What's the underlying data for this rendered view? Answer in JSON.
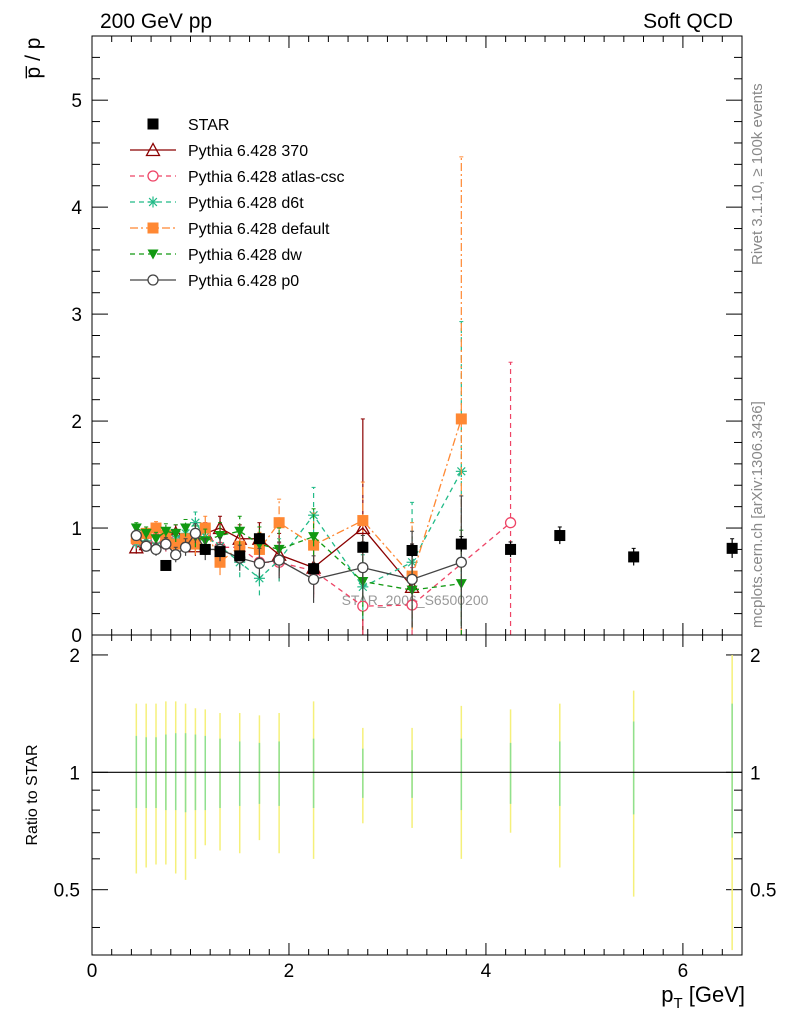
{
  "header": {
    "left": "200 GeV pp",
    "right": "Soft QCD",
    "side_top": "Rivet 3.1.10, ≥ 100k events",
    "side_bottom": "mcplots.cern.ch [arXiv:1306.3436]",
    "watermark": "STAR_2006_S6500200"
  },
  "chart_data": [
    {
      "type": "scatter",
      "panel": "main",
      "ylabel": "p̅ / p",
      "xlim": [
        0,
        6.6
      ],
      "ylim": [
        0,
        5.6
      ],
      "y_ticks": [
        0,
        1,
        2,
        3,
        4,
        5
      ],
      "series": [
        {
          "name": "STAR",
          "color": "#000000",
          "marker": "square",
          "line": "none",
          "x": [
            0.75,
            1.15,
            1.3,
            1.5,
            1.7,
            2.25,
            2.75,
            3.25,
            3.75,
            4.25,
            4.75,
            5.5,
            6.5
          ],
          "y": [
            0.65,
            0.8,
            0.78,
            0.74,
            0.9,
            0.62,
            0.82,
            0.79,
            0.85,
            0.8,
            0.93,
            0.73,
            0.81
          ],
          "err": [
            0.03,
            0.04,
            0.04,
            0.04,
            0.05,
            0.05,
            0.05,
            0.06,
            0.07,
            0.07,
            0.08,
            0.08,
            0.09
          ]
        },
        {
          "name": "Pythia 6.428 370",
          "color": "#8b0000",
          "marker": "triangle-open",
          "line": "solid",
          "x": [
            0.45,
            0.55,
            0.65,
            0.75,
            0.85,
            0.95,
            1.05,
            1.15,
            1.3,
            1.5,
            1.7,
            1.9,
            2.25,
            2.75,
            3.25
          ],
          "y": [
            0.82,
            0.85,
            0.87,
            0.92,
            0.95,
            0.87,
            0.83,
            0.95,
            1.0,
            0.9,
            0.9,
            0.75,
            0.63,
            1.0,
            0.45
          ],
          "err": [
            0.06,
            0.06,
            0.07,
            0.07,
            0.08,
            0.08,
            0.09,
            0.1,
            0.11,
            0.13,
            0.15,
            0.2,
            0.25,
            1.02,
            0.4
          ]
        },
        {
          "name": "Pythia 6.428 atlas-csc",
          "color": "#ee4466",
          "marker": "circle-open",
          "line": "dashed",
          "x": [
            0.45,
            0.55,
            0.65,
            0.75,
            0.85,
            0.95,
            1.05,
            1.15,
            1.3,
            1.5,
            1.7,
            1.9,
            2.25,
            2.75,
            3.25,
            4.25
          ],
          "y": [
            0.88,
            0.84,
            0.9,
            0.85,
            0.88,
            0.9,
            0.93,
            0.95,
            0.82,
            0.82,
            0.68,
            0.68,
            0.6,
            0.27,
            0.28,
            1.05
          ],
          "err": [
            0.05,
            0.06,
            0.06,
            0.07,
            0.07,
            0.08,
            0.09,
            0.1,
            0.11,
            0.12,
            0.15,
            0.18,
            0.25,
            0.35,
            0.35,
            1.5
          ]
        },
        {
          "name": "Pythia 6.428 d6t",
          "color": "#22bb88",
          "marker": "asterisk",
          "line": "dashed",
          "x": [
            0.45,
            0.55,
            0.65,
            0.75,
            0.85,
            0.95,
            1.05,
            1.15,
            1.3,
            1.5,
            1.7,
            1.9,
            2.25,
            2.75,
            3.25,
            3.75
          ],
          "y": [
            0.86,
            0.88,
            0.83,
            0.88,
            0.9,
            0.95,
            1.05,
            0.92,
            0.83,
            0.68,
            0.53,
            0.7,
            1.12,
            0.45,
            0.68,
            1.53
          ],
          "err": [
            0.05,
            0.06,
            0.06,
            0.07,
            0.08,
            0.08,
            0.1,
            0.11,
            0.12,
            0.14,
            0.16,
            0.2,
            0.26,
            0.3,
            0.56,
            1.4
          ]
        },
        {
          "name": "Pythia 6.428 default",
          "color": "#ff8833",
          "marker": "square",
          "line": "dashdot",
          "x": [
            0.45,
            0.55,
            0.65,
            0.75,
            0.85,
            0.95,
            1.05,
            1.15,
            1.3,
            1.5,
            1.7,
            1.9,
            2.25,
            2.75,
            3.25,
            3.75
          ],
          "y": [
            0.9,
            0.95,
            1.0,
            0.93,
            0.85,
            0.9,
            0.85,
            1.0,
            0.68,
            0.83,
            0.8,
            1.05,
            0.84,
            1.07,
            0.55,
            2.02
          ],
          "err": [
            0.05,
            0.06,
            0.06,
            0.07,
            0.08,
            0.08,
            0.1,
            0.11,
            0.12,
            0.14,
            0.16,
            0.22,
            0.3,
            0.36,
            0.5,
            2.45
          ]
        },
        {
          "name": "Pythia 6.428 dw",
          "color": "#119911",
          "marker": "triangle-down",
          "line": "dashed",
          "x": [
            0.45,
            0.55,
            0.65,
            0.75,
            0.85,
            0.95,
            1.05,
            1.15,
            1.3,
            1.5,
            1.7,
            1.9,
            2.25,
            2.75,
            3.25,
            3.75
          ],
          "y": [
            1.0,
            0.95,
            0.9,
            0.97,
            0.95,
            1.0,
            0.92,
            0.88,
            0.93,
            0.97,
            0.85,
            0.8,
            0.92,
            0.5,
            0.42,
            0.48
          ],
          "err": [
            0.05,
            0.06,
            0.06,
            0.07,
            0.08,
            0.08,
            0.1,
            0.11,
            0.12,
            0.14,
            0.16,
            0.2,
            0.26,
            0.32,
            0.35,
            0.5
          ]
        },
        {
          "name": "Pythia 6.428 p0",
          "color": "#444444",
          "marker": "circle-open",
          "line": "solid",
          "x": [
            0.45,
            0.55,
            0.65,
            0.75,
            0.85,
            0.95,
            1.05,
            1.15,
            1.3,
            1.5,
            1.7,
            1.9,
            2.25,
            2.75,
            3.25,
            3.75
          ],
          "y": [
            0.93,
            0.83,
            0.8,
            0.85,
            0.75,
            0.82,
            0.95,
            0.8,
            0.8,
            0.72,
            0.67,
            0.7,
            0.52,
            0.63,
            0.52,
            0.68
          ],
          "err": [
            0.05,
            0.05,
            0.06,
            0.06,
            0.07,
            0.08,
            0.09,
            0.1,
            0.11,
            0.12,
            0.14,
            0.17,
            0.22,
            0.3,
            0.45,
            0.62
          ]
        }
      ]
    },
    {
      "type": "scatter",
      "panel": "ratio",
      "ylabel": "Ratio to STAR",
      "xlabel": "p_T [GeV]",
      "xlim": [
        0,
        6.6
      ],
      "ylim": [
        0.34,
        2.25
      ],
      "x_ticks": [
        0,
        2,
        4,
        6
      ],
      "y_ticks": [
        0.5,
        1,
        2
      ],
      "bands": {
        "x": [
          0.45,
          0.55,
          0.65,
          0.75,
          0.85,
          0.95,
          1.05,
          1.15,
          1.3,
          1.5,
          1.7,
          1.9,
          2.25,
          2.75,
          3.25,
          3.75,
          4.25,
          4.75,
          5.5,
          6.5
        ],
        "inner_low": [
          0.81,
          0.81,
          0.81,
          0.8,
          0.8,
          0.79,
          0.8,
          0.8,
          0.81,
          0.82,
          0.83,
          0.82,
          0.81,
          0.86,
          0.86,
          0.8,
          0.83,
          0.82,
          0.78,
          0.68
        ],
        "inner_high": [
          1.24,
          1.23,
          1.23,
          1.25,
          1.26,
          1.26,
          1.25,
          1.24,
          1.22,
          1.2,
          1.19,
          1.2,
          1.22,
          1.15,
          1.14,
          1.22,
          1.19,
          1.2,
          1.35,
          1.5
        ],
        "outer_low": [
          0.55,
          0.57,
          0.58,
          0.58,
          0.55,
          0.53,
          0.6,
          0.65,
          0.63,
          0.62,
          0.67,
          0.62,
          0.6,
          0.74,
          0.72,
          0.6,
          0.7,
          0.57,
          0.48,
          0.35
        ],
        "outer_high": [
          1.5,
          1.5,
          1.5,
          1.52,
          1.52,
          1.5,
          1.46,
          1.45,
          1.42,
          1.42,
          1.4,
          1.42,
          1.52,
          1.3,
          1.3,
          1.48,
          1.45,
          1.5,
          1.62,
          2.0
        ]
      }
    }
  ]
}
